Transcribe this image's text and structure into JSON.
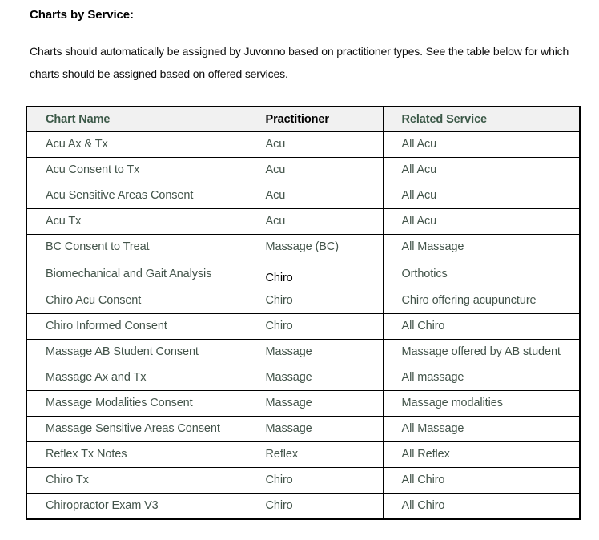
{
  "document": {
    "heading": "Charts by Service:",
    "paragraph": "Charts should automatically be assigned by Juvonno based on practitioner types. See the table below for which charts should be assigned based on offered services."
  },
  "table": {
    "headers": [
      {
        "label": "Chart Name",
        "color": "green"
      },
      {
        "label": "Practitioner",
        "color": "black"
      },
      {
        "label": "Related Service",
        "color": "green"
      }
    ],
    "rows": [
      {
        "chart_name": "Acu Ax & Tx",
        "practitioner": "Acu",
        "related_service": "All Acu"
      },
      {
        "chart_name": "Acu Consent to Tx",
        "practitioner": "Acu",
        "related_service": "All Acu"
      },
      {
        "chart_name": "Acu Sensitive Areas Consent",
        "practitioner": "Acu",
        "related_service": "All Acu"
      },
      {
        "chart_name": "Acu Tx",
        "practitioner": "Acu",
        "related_service": "All Acu"
      },
      {
        "chart_name": "BC Consent to Treat",
        "practitioner": "Massage (BC)",
        "related_service": "All Massage"
      },
      {
        "chart_name": "Biomechanical and Gait Analysis",
        "practitioner": "Chiro",
        "related_service": "Orthotics",
        "practitioner_variant": "black-offset"
      },
      {
        "chart_name": "Chiro Acu Consent",
        "practitioner": "Chiro",
        "related_service": "Chiro offering acupuncture"
      },
      {
        "chart_name": "Chiro Informed Consent",
        "practitioner": "Chiro",
        "related_service": "All Chiro"
      },
      {
        "chart_name": "Massage AB Student Consent",
        "practitioner": "Massage",
        "related_service": "Massage offered by AB student"
      },
      {
        "chart_name": "Massage Ax and Tx",
        "practitioner": "Massage",
        "related_service": "All massage"
      },
      {
        "chart_name": "Massage Modalities Consent",
        "practitioner": "Massage",
        "related_service": "Massage modalities"
      },
      {
        "chart_name": "Massage Sensitive Areas Consent",
        "practitioner": "Massage",
        "related_service": "All Massage"
      },
      {
        "chart_name": "Reflex Tx Notes",
        "practitioner": "Reflex",
        "related_service": "All Reflex"
      },
      {
        "chart_name": "Chiro Tx",
        "practitioner": "Chiro",
        "related_service": "All Chiro"
      },
      {
        "chart_name": "Chiropractor Exam V3",
        "practitioner": "Chiro",
        "related_service": "All Chiro"
      }
    ]
  },
  "colors": {
    "header_green": "#3c5948",
    "body_text": "#43544a",
    "header_bg": "#f1f1f1",
    "border": "#000000"
  }
}
